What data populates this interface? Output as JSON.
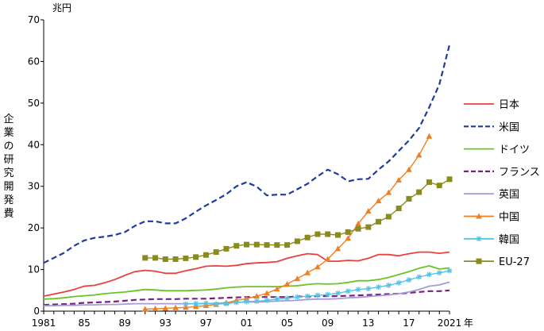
{
  "chart_data": {
    "type": "line",
    "y_unit": "兆円",
    "x_unit": "年",
    "ylabel": "企業の研究開発費",
    "ylim": [
      0,
      70
    ],
    "y_ticks": [
      "0",
      "10",
      "20",
      "30",
      "40",
      "50",
      "60",
      "70"
    ],
    "x_range": [
      1981,
      2021
    ],
    "x_ticks": [
      "1981",
      "85",
      "89",
      "93",
      "97",
      "01",
      "05",
      "09",
      "13",
      "17",
      "2021"
    ],
    "grid": false,
    "legend_position": "right",
    "series": [
      {
        "name": "日本",
        "color": "#e8413f",
        "dash": "solid",
        "marker": "none",
        "x": [
          1981,
          1982,
          1983,
          1984,
          1985,
          1986,
          1987,
          1988,
          1989,
          1990,
          1991,
          1992,
          1993,
          1994,
          1995,
          1996,
          1997,
          1998,
          1999,
          2000,
          2001,
          2002,
          2003,
          2004,
          2005,
          2006,
          2007,
          2008,
          2009,
          2010,
          2011,
          2012,
          2013,
          2014,
          2015,
          2016,
          2017,
          2018,
          2019,
          2020,
          2021
        ],
        "y": [
          3.6,
          4.1,
          4.6,
          5.2,
          6.0,
          6.2,
          6.8,
          7.6,
          8.6,
          9.5,
          9.8,
          9.6,
          9.1,
          9.1,
          9.7,
          10.2,
          10.8,
          10.9,
          10.8,
          11.0,
          11.4,
          11.6,
          11.7,
          11.9,
          12.7,
          13.3,
          13.8,
          13.6,
          12.0,
          12.0,
          12.2,
          12.1,
          12.7,
          13.6,
          13.6,
          13.3,
          13.8,
          14.2,
          14.2,
          13.9,
          14.2
        ]
      },
      {
        "name": "米国",
        "color": "#1f3c9c",
        "dash": "dashed",
        "marker": "none",
        "x": [
          1981,
          1982,
          1983,
          1984,
          1985,
          1986,
          1987,
          1988,
          1989,
          1990,
          1991,
          1992,
          1993,
          1994,
          1995,
          1996,
          1997,
          1998,
          1999,
          2000,
          2001,
          2002,
          2003,
          2004,
          2005,
          2006,
          2007,
          2008,
          2009,
          2010,
          2011,
          2012,
          2013,
          2014,
          2015,
          2016,
          2017,
          2018,
          2019,
          2020,
          2021
        ],
        "y": [
          11.6,
          12.8,
          14.0,
          15.7,
          17.0,
          17.6,
          17.9,
          18.3,
          19.0,
          20.5,
          21.6,
          21.6,
          21.1,
          21.1,
          22.3,
          23.9,
          25.4,
          26.7,
          28.1,
          30.0,
          31.0,
          29.9,
          27.8,
          28.0,
          28.0,
          29.3,
          30.6,
          32.4,
          34.0,
          32.9,
          31.2,
          31.7,
          31.8,
          34.0,
          36.0,
          38.5,
          41.0,
          44.0,
          49.0,
          54.5,
          64.0
        ]
      },
      {
        "name": "ドイツ",
        "color": "#6bc426",
        "dash": "solid",
        "marker": "none",
        "x": [
          1981,
          1982,
          1983,
          1984,
          1985,
          1986,
          1987,
          1988,
          1989,
          1990,
          1991,
          1992,
          1993,
          1994,
          1995,
          1996,
          1997,
          1998,
          1999,
          2000,
          2001,
          2002,
          2003,
          2004,
          2005,
          2006,
          2007,
          2008,
          2009,
          2010,
          2011,
          2012,
          2013,
          2014,
          2015,
          2016,
          2017,
          2018,
          2019,
          2020,
          2021
        ],
        "y": [
          2.9,
          3.0,
          3.2,
          3.5,
          3.7,
          3.9,
          4.2,
          4.4,
          4.6,
          4.9,
          5.2,
          5.1,
          4.9,
          4.9,
          4.9,
          5.0,
          5.1,
          5.3,
          5.6,
          5.8,
          5.9,
          5.9,
          5.9,
          5.9,
          6.0,
          6.1,
          6.4,
          6.6,
          6.5,
          6.6,
          6.9,
          7.3,
          7.3,
          7.6,
          8.1,
          8.8,
          9.5,
          10.3,
          10.9,
          10.1,
          10.4
        ]
      },
      {
        "name": "フランス",
        "color": "#75237e",
        "dash": "dashed",
        "marker": "none",
        "x": [
          1981,
          1982,
          1983,
          1984,
          1985,
          1986,
          1987,
          1988,
          1989,
          1990,
          1991,
          1992,
          1993,
          1994,
          1995,
          1996,
          1997,
          1998,
          1999,
          2000,
          2001,
          2002,
          2003,
          2004,
          2005,
          2006,
          2007,
          2008,
          2009,
          2010,
          2011,
          2012,
          2013,
          2014,
          2015,
          2016,
          2017,
          2018,
          2019,
          2020,
          2021
        ],
        "y": [
          1.5,
          1.6,
          1.7,
          1.8,
          2.0,
          2.1,
          2.2,
          2.3,
          2.5,
          2.7,
          2.8,
          2.9,
          2.9,
          2.9,
          3.0,
          3.0,
          3.0,
          3.1,
          3.2,
          3.3,
          3.4,
          3.4,
          3.4,
          3.4,
          3.4,
          3.5,
          3.5,
          3.6,
          3.6,
          3.6,
          3.7,
          3.8,
          3.9,
          4.0,
          4.1,
          4.2,
          4.4,
          4.6,
          4.8,
          4.8,
          5.0
        ]
      },
      {
        "name": "英国",
        "color": "#a99cd5",
        "dash": "solid",
        "marker": "none",
        "x": [
          1981,
          1982,
          1983,
          1984,
          1985,
          1986,
          1987,
          1988,
          1989,
          1990,
          1991,
          1992,
          1993,
          1994,
          1995,
          1996,
          1997,
          1998,
          1999,
          2000,
          2001,
          2002,
          2003,
          2004,
          2005,
          2006,
          2007,
          2008,
          2009,
          2010,
          2011,
          2012,
          2013,
          2014,
          2015,
          2016,
          2017,
          2018,
          2019,
          2020,
          2021
        ],
        "y": [
          1.3,
          1.3,
          1.4,
          1.4,
          1.5,
          1.5,
          1.6,
          1.6,
          1.7,
          1.8,
          1.8,
          1.8,
          1.8,
          1.8,
          1.8,
          1.8,
          1.8,
          1.9,
          2.0,
          2.1,
          2.2,
          2.2,
          2.3,
          2.4,
          2.5,
          2.6,
          2.8,
          2.9,
          2.9,
          3.0,
          3.2,
          3.3,
          3.5,
          3.7,
          3.9,
          4.2,
          4.6,
          5.2,
          6.0,
          6.3,
          7.0
        ]
      },
      {
        "name": "中国",
        "color": "#ee7f22",
        "dash": "solid",
        "marker": "triangle",
        "x": [
          1991,
          1992,
          1993,
          1994,
          1995,
          1996,
          1997,
          1998,
          1999,
          2000,
          2001,
          2002,
          2003,
          2004,
          2005,
          2006,
          2007,
          2008,
          2009,
          2010,
          2011,
          2012,
          2013,
          2014,
          2015,
          2016,
          2017,
          2018,
          2019
        ],
        "y": [
          0.5,
          0.6,
          0.7,
          0.8,
          0.9,
          1.1,
          1.3,
          1.6,
          2.0,
          2.6,
          3.0,
          3.6,
          4.3,
          5.3,
          6.5,
          7.8,
          9.2,
          10.6,
          12.5,
          15.0,
          17.5,
          21.0,
          24.0,
          26.5,
          28.5,
          31.5,
          34.0,
          37.5,
          42.0
        ]
      },
      {
        "name": "韓国",
        "color": "#57c2e3",
        "dash": "solid",
        "marker": "star",
        "x": [
          1995,
          1996,
          1997,
          1998,
          1999,
          2000,
          2001,
          2002,
          2003,
          2004,
          2005,
          2006,
          2007,
          2008,
          2009,
          2010,
          2011,
          2012,
          2013,
          2014,
          2015,
          2016,
          2017,
          2018,
          2019,
          2020,
          2021
        ],
        "y": [
          1.7,
          1.8,
          1.9,
          1.7,
          1.8,
          2.1,
          2.3,
          2.4,
          2.6,
          2.9,
          3.1,
          3.4,
          3.6,
          3.8,
          4.0,
          4.3,
          4.8,
          5.2,
          5.4,
          5.8,
          6.2,
          6.8,
          7.5,
          8.2,
          8.8,
          9.2,
          9.7
        ]
      },
      {
        "name": "EU-27",
        "color": "#8a8a1e",
        "dash": "solid",
        "marker": "square",
        "x": [
          1991,
          1992,
          1993,
          1994,
          1995,
          1996,
          1997,
          1998,
          1999,
          2000,
          2001,
          2002,
          2003,
          2004,
          2005,
          2006,
          2007,
          2008,
          2009,
          2010,
          2011,
          2012,
          2013,
          2014,
          2015,
          2016,
          2017,
          2018,
          2019,
          2020,
          2021
        ],
        "y": [
          12.8,
          12.8,
          12.5,
          12.5,
          12.7,
          13.0,
          13.5,
          14.2,
          15.0,
          15.7,
          16.0,
          16.0,
          15.9,
          15.9,
          15.9,
          16.8,
          17.7,
          18.5,
          18.5,
          18.3,
          19.0,
          19.8,
          20.2,
          21.5,
          22.7,
          24.7,
          27.0,
          28.6,
          31.0,
          30.2,
          31.7
        ]
      }
    ]
  }
}
